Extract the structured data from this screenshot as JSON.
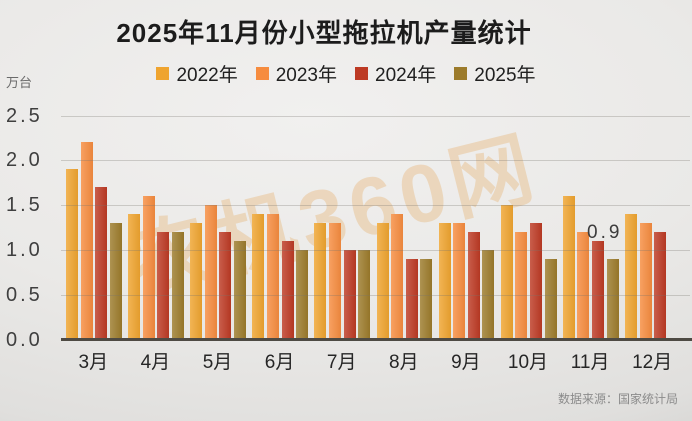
{
  "title": "2025年11月份小型拖拉机产量统计",
  "unit_label": "万台",
  "watermark": "农机360网",
  "source": "数据来源：国家统计局",
  "annotation": {
    "text": "0.9"
  },
  "chart_data": {
    "type": "bar",
    "title": "2025年11月份小型拖拉机产量统计",
    "xlabel": "",
    "ylabel": "万台",
    "ylim": [
      0,
      2.5
    ],
    "ytick_step": 0.5,
    "yticks": [
      "2.5",
      "2.0",
      "1.5",
      "1.0",
      "0.5",
      "0.0"
    ],
    "grid": true,
    "legend_position": "top",
    "categories": [
      "3月",
      "4月",
      "5月",
      "6月",
      "7月",
      "8月",
      "9月",
      "10月",
      "11月",
      "12月"
    ],
    "series": [
      {
        "name": "2022年",
        "color": "#EFA42F",
        "values": [
          1.9,
          1.4,
          1.3,
          1.4,
          1.3,
          1.3,
          1.3,
          1.5,
          1.6,
          1.4
        ]
      },
      {
        "name": "2023年",
        "color": "#F68C3F",
        "values": [
          2.2,
          1.6,
          1.5,
          1.4,
          1.3,
          1.4,
          1.3,
          1.2,
          1.2,
          1.3
        ]
      },
      {
        "name": "2024年",
        "color": "#BD3A24",
        "values": [
          1.7,
          1.2,
          1.2,
          1.1,
          1.0,
          0.9,
          1.2,
          1.3,
          1.1,
          1.2
        ]
      },
      {
        "name": "2025年",
        "color": "#9C7B2B",
        "values": [
          1.3,
          1.2,
          1.1,
          1.0,
          1.0,
          0.9,
          1.0,
          0.9,
          0.9,
          null
        ]
      }
    ],
    "annotations": [
      {
        "text": "0.9",
        "series": "2025年",
        "category": "11月"
      }
    ]
  }
}
